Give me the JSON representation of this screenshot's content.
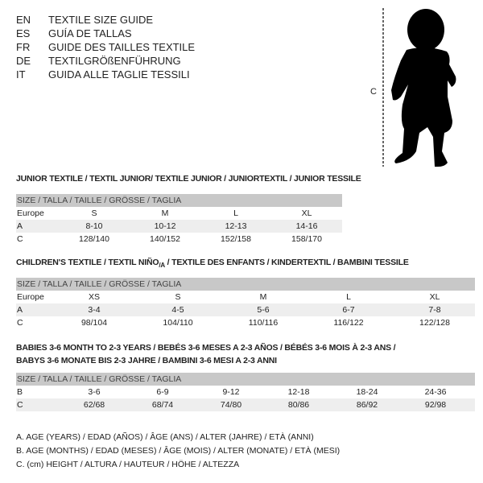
{
  "languages": [
    {
      "code": "EN",
      "title": "TEXTILE SIZE GUIDE"
    },
    {
      "code": "ES",
      "title": "GUÍA DE TALLAS"
    },
    {
      "code": "FR",
      "title": "GUIDE DES TAILLES TEXTILE"
    },
    {
      "code": "DE",
      "title": "TEXTILGRÖßENFÜHRUNG"
    },
    {
      "code": "IT",
      "title": "GUIDA ALLE TAGLIE TESSILI"
    }
  ],
  "figure": {
    "measure_label": "C",
    "icon": "child-silhouette"
  },
  "junior": {
    "title": "JUNIOR TEXTILE / TEXTIL JUNIOR/ TEXTILE JUNIOR / JUNIORTEXTIL / JUNIOR TESSILE",
    "header": "SIZE / TALLA / TAILLE / GRÖSSE / TAGLIA",
    "rows": [
      {
        "label": "Europe",
        "values": [
          "S",
          "M",
          "L",
          "XL"
        ]
      },
      {
        "label": "A",
        "values": [
          "8-10",
          "10-12",
          "12-13",
          "14-16"
        ]
      },
      {
        "label": "C",
        "values": [
          "128/140",
          "140/152",
          "152/158",
          "158/170"
        ]
      }
    ]
  },
  "children": {
    "title_main": "CHILDREN'S TEXTILE / TEXTIL NIÑO",
    "title_sub": "/A",
    "title_rest": " / TEXTILE DES ENFANTS / KINDERTEXTIL / BAMBINI TESSILE",
    "header": "SIZE / TALLA / TAILLE / GRÖSSE / TAGLIA",
    "rows": [
      {
        "label": "Europe",
        "values": [
          "XS",
          "S",
          "M",
          "L",
          "XL"
        ]
      },
      {
        "label": "A",
        "values": [
          "3-4",
          "4-5",
          "5-6",
          "6-7",
          "7-8"
        ]
      },
      {
        "label": "C",
        "values": [
          "98/104",
          "104/110",
          "110/116",
          "116/122",
          "122/128"
        ]
      }
    ]
  },
  "babies": {
    "title_line1": "BABIES 3-6 MONTH TO 2-3 YEARS / BEBÉS 3-6 MESES A 2-3 AÑOS / BÉBÉS 3-6 MOIS À 2-3 ANS /",
    "title_line2": "BABYS 3-6 MONATE BIS 2-3 JAHRE / BAMBINI 3-6 MESI A 2-3 ANNI",
    "header": "SIZE / TALLA / TAILLE / GRÖSSE / TAGLIA",
    "rows": [
      {
        "label": "B",
        "values": [
          "3-6",
          "6-9",
          "9-12",
          "12-18",
          "18-24",
          "24-36"
        ]
      },
      {
        "label": "C",
        "values": [
          "62/68",
          "68/74",
          "74/80",
          "80/86",
          "86/92",
          "92/98"
        ]
      }
    ]
  },
  "legend": [
    "A. AGE (YEARS) / EDAD (AÑOS) / ÂGE (ANS) / ALTER (JAHRE) / ETÀ (ANNI)",
    "B. AGE (MONTHS) / EDAD (MESES) / ÂGE (MOIS) / ALTER (MONATE) / ETÀ (MESI)",
    "C. (cm) HEIGHT / ALTURA / HAUTEUR / HÖHE / ALTEZZA"
  ]
}
